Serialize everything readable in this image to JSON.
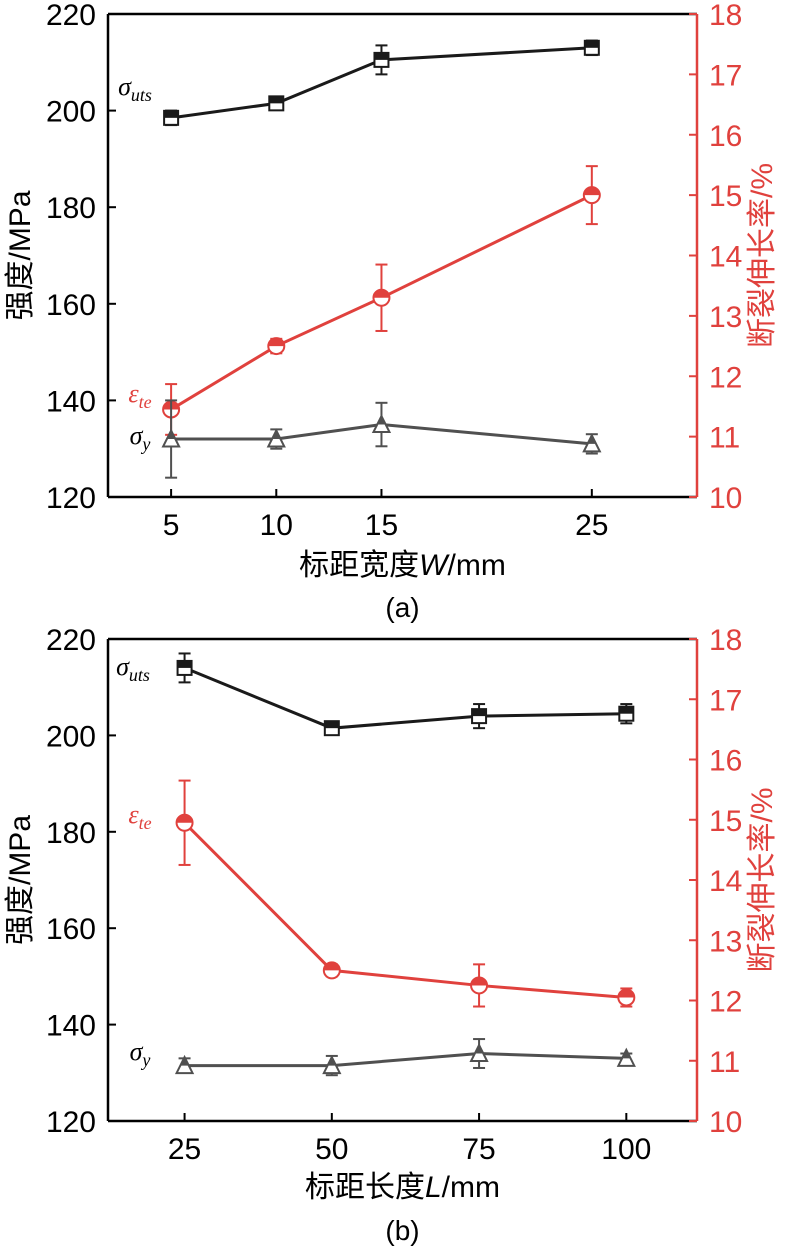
{
  "chart_data": [
    {
      "type": "line",
      "panel_label": "(a)",
      "xlabel_prefix": "标距宽度",
      "xlabel_var": "W",
      "xlabel_suffix": "/mm",
      "ylabel_left": "强度/MPa",
      "ylabel_right": "断裂伸长率/%",
      "x_ticks": [
        5,
        10,
        15,
        25
      ],
      "xlim": [
        2,
        30
      ],
      "y_left_ticks": [
        120,
        140,
        160,
        180,
        200,
        220
      ],
      "ylim_left": [
        120,
        220
      ],
      "y_right_ticks": [
        10,
        11,
        12,
        13,
        14,
        15,
        16,
        17,
        18
      ],
      "ylim_right": [
        10,
        18
      ],
      "series": [
        {
          "name": "σuts",
          "label_main": "σ",
          "label_sub": "uts",
          "axis": "left",
          "color": "#1a1a1a",
          "marker": "square",
          "x": [
            5,
            10,
            15,
            25
          ],
          "values": [
            198.5,
            201.5,
            210.5,
            213
          ],
          "errors": [
            1.5,
            1.2,
            3.0,
            1.5
          ],
          "label_anchor": 0
        },
        {
          "name": "εte",
          "label_main": "ε",
          "label_sub": "te",
          "axis": "right",
          "color": "#e0413d",
          "marker": "circle",
          "x": [
            5,
            10,
            15,
            25
          ],
          "values": [
            11.45,
            12.5,
            13.3,
            15.0
          ],
          "errors": [
            0.42,
            0.12,
            0.55,
            0.48
          ],
          "label_anchor": 0
        },
        {
          "name": "σy",
          "label_main": "σ",
          "label_sub": "y",
          "axis": "left",
          "color": "#505050",
          "marker": "triangle",
          "x": [
            5,
            10,
            15,
            25
          ],
          "values": [
            132,
            132,
            135,
            131
          ],
          "errors": [
            8.0,
            2.0,
            4.5,
            2.0
          ],
          "label_anchor": 0
        }
      ]
    },
    {
      "type": "line",
      "panel_label": "(b)",
      "xlabel_prefix": "标距长度",
      "xlabel_var": "L",
      "xlabel_suffix": "/mm",
      "ylabel_left": "强度/MPa",
      "ylabel_right": "断裂伸长率/%",
      "x_ticks": [
        25,
        50,
        75,
        100
      ],
      "xlim": [
        12,
        112
      ],
      "y_left_ticks": [
        120,
        140,
        160,
        180,
        200,
        220
      ],
      "ylim_left": [
        120,
        220
      ],
      "y_right_ticks": [
        10,
        11,
        12,
        13,
        14,
        15,
        16,
        17,
        18
      ],
      "ylim_right": [
        10,
        18
      ],
      "series": [
        {
          "name": "σuts",
          "label_main": "σ",
          "label_sub": "uts",
          "axis": "left",
          "color": "#1a1a1a",
          "marker": "square",
          "x": [
            25,
            50,
            75,
            100
          ],
          "values": [
            214,
            201.5,
            204,
            204.5
          ],
          "errors": [
            3.0,
            0.8,
            2.5,
            2.0
          ],
          "label_anchor": 0
        },
        {
          "name": "εte",
          "label_main": "ε",
          "label_sub": "te",
          "axis": "right",
          "color": "#e0413d",
          "marker": "circle",
          "x": [
            25,
            50,
            75,
            100
          ],
          "values": [
            14.95,
            12.5,
            12.25,
            12.05
          ],
          "errors": [
            0.7,
            0.1,
            0.35,
            0.15
          ],
          "label_anchor": 0
        },
        {
          "name": "σy",
          "label_main": "σ",
          "label_sub": "y",
          "axis": "left",
          "color": "#505050",
          "marker": "triangle",
          "x": [
            25,
            50,
            75,
            100
          ],
          "values": [
            131.5,
            131.5,
            134,
            133
          ],
          "errors": [
            1.5,
            2.0,
            3.0,
            1.0
          ],
          "label_anchor": 0
        }
      ]
    }
  ]
}
